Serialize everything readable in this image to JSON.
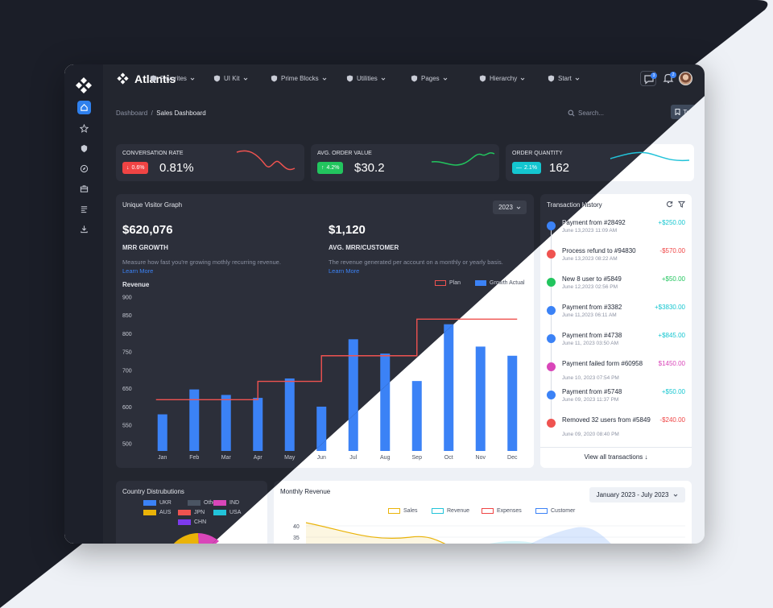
{
  "app": {
    "name": "Atlantis"
  },
  "nav": {
    "items": [
      {
        "label": "Favorites"
      },
      {
        "label": "UI Kit"
      },
      {
        "label": "Prime Blocks"
      },
      {
        "label": "Utilities"
      },
      {
        "label": "Pages"
      },
      {
        "label": "Hierarchy"
      },
      {
        "label": "Start"
      }
    ]
  },
  "notifications": {
    "chat_count": "3",
    "bell_count": "2"
  },
  "breadcrumb": {
    "root": "Dashboard",
    "sep": "/",
    "current": "Sales Dashboard"
  },
  "search": {
    "placeholder": "Search..."
  },
  "today_label": "Today",
  "kpis": [
    {
      "label": "CONVERSATION RATE",
      "badge": "0.6%",
      "badge_dir": "down",
      "value": "0.81%",
      "badge_color": "#ef4444"
    },
    {
      "label": "AVG. ORDER VALUE",
      "badge": "4.2%",
      "badge_dir": "up",
      "value": "$30.2",
      "badge_color": "#22c55e"
    },
    {
      "label": "ORDER QUANTITY",
      "badge": "2.1%",
      "badge_dir": "flat",
      "value": "162",
      "badge_color": "#14c6d0"
    }
  ],
  "visitor": {
    "title": "Unique Visitor Graph",
    "year": "2023",
    "mrr": {
      "value": "$620,076",
      "label": "MRR GROWTH",
      "desc": "Measure how fast you're growing mothly recurring revenue.",
      "link": "Learn More"
    },
    "avg": {
      "value": "$1,120",
      "label": "AVG. MRR/CUSTOMER",
      "desc": "The revenue generated per account on a monthly or yearly basis.",
      "link": "Learn More"
    },
    "revenue_label": "Revenue"
  },
  "chart_data": [
    {
      "type": "bar",
      "title": "Unique Visitor Graph",
      "ylabel": "Revenue",
      "categories": [
        "Jan",
        "Feb",
        "Mar",
        "Apr",
        "May",
        "Jun",
        "Jul",
        "Aug",
        "Sep",
        "Oct",
        "Nov",
        "Dec"
      ],
      "yticks": [
        500,
        550,
        600,
        650,
        700,
        750,
        800,
        850,
        900
      ],
      "ylim": [
        480,
        900
      ],
      "series": [
        {
          "name": "Growth Actual",
          "type": "bar",
          "color": "#3b82f6",
          "values": [
            580,
            648,
            633,
            625,
            678,
            601,
            785,
            746,
            671,
            826,
            765,
            740
          ]
        },
        {
          "name": "Plan",
          "type": "step",
          "color": "#ef5350",
          "values": [
            620,
            620,
            620,
            670,
            670,
            740,
            740,
            740,
            840,
            840,
            840,
            840
          ]
        }
      ],
      "legend": "top-right"
    },
    {
      "type": "area",
      "title": "Monthly Revenue",
      "yticks": [
        35,
        40
      ],
      "series": [
        {
          "name": "Sales",
          "color": "#eab308"
        },
        {
          "name": "Revenue",
          "color": "#22c3d9"
        },
        {
          "name": "Expenses",
          "color": "#ef4444"
        },
        {
          "name": "Customer",
          "color": "#3b82f6"
        }
      ],
      "legend": "top"
    },
    {
      "type": "pie",
      "title": "Country Distrubutions",
      "categories": [
        "UKR",
        "Other",
        "IND",
        "AUS",
        "JPN",
        "USA",
        "CHN"
      ],
      "colors": [
        "#3b82f6",
        "#4b5563",
        "#d946b9",
        "#eab308",
        "#ef5350",
        "#22c3d9",
        "#7c3aed"
      ]
    }
  ],
  "transactions": {
    "title": "Transaction History",
    "items": [
      {
        "text": "Payment from #28492",
        "date": "June 13,2023 11:09 AM",
        "amount": "+$250.00",
        "color": "#14c6d0",
        "dot": "#3b82f6"
      },
      {
        "text": "Process refund to #94830",
        "date": "June 13,2023 08:22 AM",
        "amount": "-$570.00",
        "color": "#ef4444",
        "dot": "#ef5350"
      },
      {
        "text": "New 8 user to #5849",
        "date": "June 12,2023 02:56 PM",
        "amount": "+$50.00",
        "color": "#22c55e",
        "dot": "#22c55e"
      },
      {
        "text": "Payment from #3382",
        "date": "June 11,2023 06:11 AM",
        "amount": "+$3830.00",
        "color": "#14c6d0",
        "dot": "#3b82f6"
      },
      {
        "text": "Payment from #4738",
        "date": "June 11, 2023 03:50 AM",
        "amount": "+$845.00",
        "color": "#14c6d0",
        "dot": "#3b82f6"
      },
      {
        "text": "Payment failed form #60958",
        "date": "June 10, 2023 07:54 PM",
        "amount": "$1450.00",
        "color": "#d946b9",
        "dot": "#d946b9"
      },
      {
        "text": "Payment from #5748",
        "date": "June 09, 2023 11:37 PM",
        "amount": "+$50.00",
        "color": "#14c6d0",
        "dot": "#3b82f6"
      },
      {
        "text": "Removed 32 users from #5849",
        "date": "June 09, 2020 08:40 PM",
        "amount": "-$240.00",
        "color": "#ef4444",
        "dot": "#ef5350"
      }
    ],
    "view_all": "View all transactions"
  },
  "country": {
    "title": "Country Distrubutions"
  },
  "monthly": {
    "title": "Monthly Revenue",
    "range": "January 2023 - July 2023"
  }
}
